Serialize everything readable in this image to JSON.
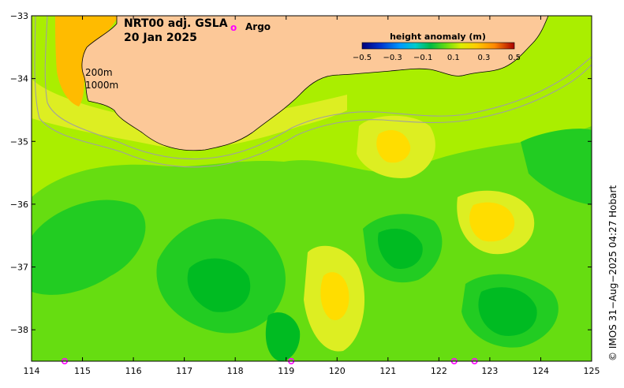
{
  "title": {
    "line1": "NRT00 adj. GSLA",
    "line2": "20 Jan 2025"
  },
  "legend": {
    "argo_marker": "o",
    "argo_label": "Argo",
    "argo_color": "#ff00ff"
  },
  "isobaths": {
    "shallow": "200m",
    "deep": "1000m",
    "color": "#a0a0a0"
  },
  "colorbar": {
    "title": "height anomaly (m)",
    "ticks": [
      "−0.5",
      "−0.3",
      "−0.1",
      "0.1",
      "0.3",
      "0.5"
    ],
    "colors": [
      "#00007a",
      "#0033cc",
      "#0099ff",
      "#00cccc",
      "#00bb44",
      "#55cc11",
      "#bbee00",
      "#eeee00",
      "#ffcc00",
      "#ff9900",
      "#ee6600",
      "#aa0000"
    ]
  },
  "credit": "© IMOS 31−Aug−2025 04:27 Hobart",
  "axes": {
    "x_ticks": [
      "114",
      "115",
      "116",
      "117",
      "118",
      "119",
      "120",
      "121",
      "122",
      "123",
      "124",
      "125"
    ],
    "y_ticks": [
      "−33",
      "−34",
      "−35",
      "−36",
      "−37",
      "−38"
    ],
    "lon_range": [
      114,
      125
    ],
    "lat_range": [
      -38.5,
      -33
    ]
  },
  "colors": {
    "land": "#fcc898",
    "sla_0.0": "#00bb22",
    "sla_0.05": "#22cc22",
    "sla_0.1": "#66dd11",
    "sla_0.15": "#aaee00",
    "sla_0.2": "#ddee22",
    "sla_0.25": "#ffdd00",
    "sla_0.3": "#ffbb00",
    "sla_0.35": "#ff9900"
  },
  "argo_floats": [
    {
      "lon": 114.65,
      "lat": -38.5
    },
    {
      "lon": 119.1,
      "lat": -38.5
    },
    {
      "lon": 122.3,
      "lat": -38.5
    },
    {
      "lon": 122.7,
      "lat": -38.5
    }
  ]
}
